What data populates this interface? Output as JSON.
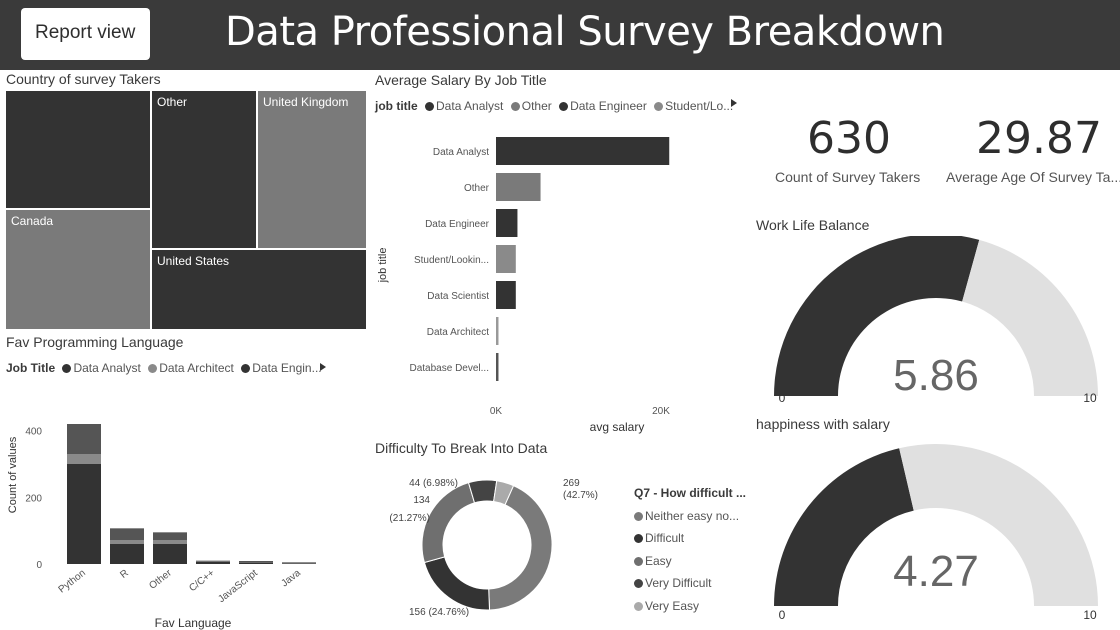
{
  "header": {
    "report_button": "Report view",
    "title": "Data Professional Survey Breakdown"
  },
  "colors": {
    "header_bg": "#3a3a3a",
    "dark": "#333333",
    "mid": "#7a7a7a",
    "light_gray": "#e0e0e0"
  },
  "treemap": {
    "title": "Country of survey Takers",
    "cells": [
      {
        "label": ""
      },
      {
        "label": "Other"
      },
      {
        "label": "United Kingdom"
      },
      {
        "label": "Canada"
      },
      {
        "label": "United States"
      }
    ]
  },
  "salary_chart": {
    "title": "Average Salary By Job Title",
    "legend_title": "job title",
    "legend": [
      "Data Analyst",
      "Other",
      "Data Engineer",
      "Student/Lo..."
    ]
  },
  "language_chart": {
    "title": "Fav Programming Language",
    "legend_title": "Job Title",
    "legend": [
      "Data Analyst",
      "Data Architect",
      "Data Engin..."
    ]
  },
  "kpis": {
    "count_value": "630",
    "count_label": "Count of Survey Takers",
    "age_value": "29.87",
    "age_label": "Average Age Of Survey Ta..."
  },
  "gauges": [
    {
      "title": "Work Life Balance",
      "value_text": "5.86",
      "min": "0",
      "max": "10"
    },
    {
      "title": "happiness with salary",
      "value_text": "4.27",
      "min": "0",
      "max": "10"
    }
  ],
  "donut": {
    "title": "Difficulty To Break Into Data",
    "legend_title": "Q7 - How difficult ...",
    "legend": [
      "Neither easy no...",
      "Difficult",
      "Easy",
      "Very Difficult",
      "Very Easy"
    ]
  },
  "chart_data": [
    {
      "type": "bar",
      "orientation": "horizontal",
      "title": "Average Salary By Job Title",
      "xlabel": "avg salary",
      "ylabel": "job title",
      "categories": [
        "Data Analyst",
        "Other",
        "Data Engineer",
        "Student/Lookin...",
        "Data Scientist",
        "Data Architect",
        "Database Devel..."
      ],
      "values": [
        21000,
        5400,
        2600,
        2400,
        2400,
        300,
        300
      ],
      "colors": [
        "#333333",
        "#7a7a7a",
        "#333333",
        "#8a8a8a",
        "#333333",
        "#999999",
        "#555555"
      ],
      "xticks": [
        "0K",
        "20K"
      ],
      "xlim": [
        0,
        20000
      ]
    },
    {
      "type": "bar",
      "stacked": true,
      "title": "Fav Programming Language",
      "xlabel": "Fav Language",
      "ylabel": "Count of values",
      "categories": [
        "Python",
        "R",
        "Other",
        "C/C++",
        "JavaScript",
        "Java"
      ],
      "series": [
        {
          "name": "Data Analyst",
          "values": [
            300,
            60,
            60,
            6,
            5,
            2
          ]
        },
        {
          "name": "Data Architect",
          "values": [
            30,
            12,
            12,
            1,
            1,
            1
          ]
        },
        {
          "name": "Data Engineer",
          "values": [
            90,
            35,
            23,
            3,
            3,
            2
          ]
        }
      ],
      "series_colors": [
        "#333333",
        "#8a8a8a",
        "#555555"
      ],
      "yticks": [
        0,
        200,
        400
      ],
      "ylim": [
        0,
        420
      ]
    },
    {
      "type": "pie",
      "donut": true,
      "title": "Difficulty To Break Into Data",
      "categories": [
        "Neither easy nor difficult",
        "Difficult",
        "Easy",
        "Very Difficult",
        "Very Easy"
      ],
      "values": [
        269,
        134,
        156,
        44,
        27
      ],
      "labels": [
        "269 (42.7%)",
        "134 (21.27%)",
        "156 (24.76%)",
        "44 (6.98%)",
        ""
      ],
      "colors": [
        "#7a7a7a",
        "#333333",
        "#6f6f6f",
        "#444444",
        "#aaaaaa"
      ]
    },
    {
      "type": "gauge",
      "title": "Work Life Balance",
      "value": 5.86,
      "min": 0,
      "max": 10
    },
    {
      "type": "gauge",
      "title": "happiness with salary",
      "value": 4.27,
      "min": 0,
      "max": 10
    }
  ]
}
